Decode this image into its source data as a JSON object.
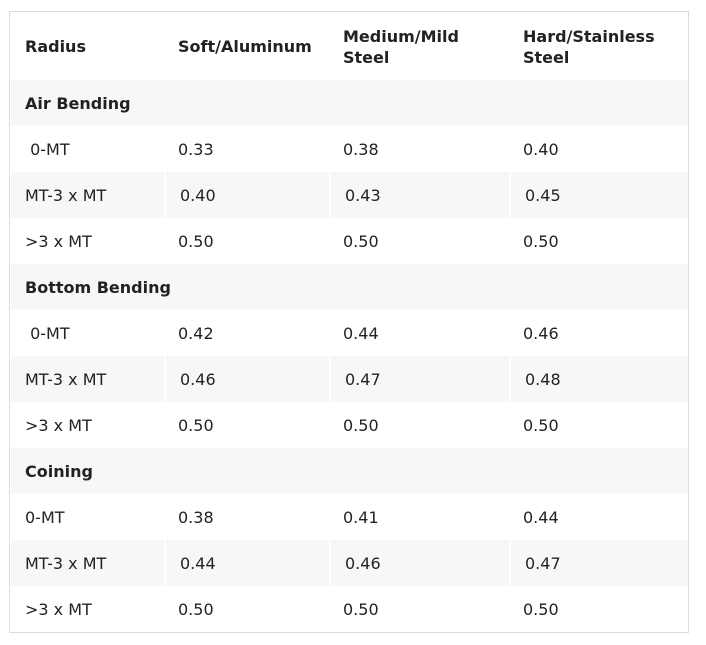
{
  "table": {
    "headers": [
      "Radius",
      "Soft/Aluminum",
      "Medium/Mild Steel",
      "Hard/Stainless Steel"
    ],
    "sections": [
      {
        "title": "Air Bending",
        "rows": [
          [
            " 0-MT",
            "0.33",
            "0.38",
            "0.40"
          ],
          [
            "MT-3 x MT",
            "0.40",
            "0.43",
            "0.45"
          ],
          [
            ">3 x MT",
            "0.50",
            "0.50",
            "0.50"
          ]
        ]
      },
      {
        "title": "Bottom Bending",
        "rows": [
          [
            " 0-MT",
            "0.42",
            "0.44",
            "0.46"
          ],
          [
            "MT-3 x MT",
            "0.46",
            "0.47",
            "0.48"
          ],
          [
            ">3 x MT",
            "0.50",
            "0.50",
            "0.50"
          ]
        ]
      },
      {
        "title": "Coining",
        "rows": [
          [
            "0-MT",
            "0.38",
            "0.41",
            "0.44"
          ],
          [
            "MT-3 x MT",
            "0.44",
            "0.46",
            "0.47"
          ],
          [
            ">3 x MT",
            "0.50",
            "0.50",
            "0.50"
          ]
        ]
      }
    ]
  }
}
